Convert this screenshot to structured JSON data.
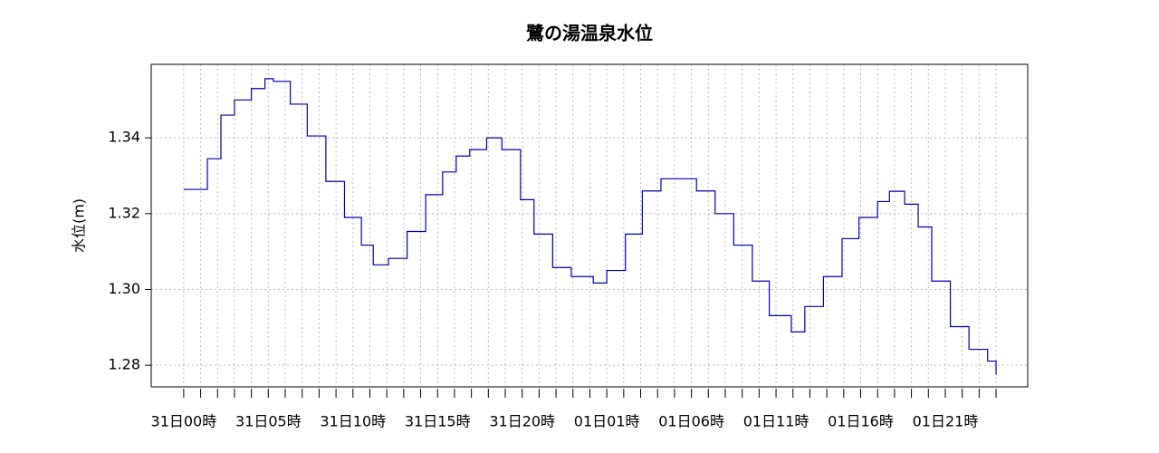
{
  "chart_data": {
    "type": "line",
    "title": "鷺の湯温泉水位",
    "ylabel": "水位(m)",
    "step": true,
    "grid": true,
    "xlim": [
      -1.92,
      49.87
    ],
    "ylim": [
      1.2743,
      1.3594
    ],
    "yticks": [
      1.28,
      {
        "value": 1.3,
        "label": "1.30"
      },
      1.32,
      1.34
    ],
    "xticks": [
      {
        "value": 0,
        "label": "31日00時"
      },
      {
        "value": 1,
        "label": null
      },
      {
        "value": 2,
        "label": null
      },
      {
        "value": 3,
        "label": null
      },
      {
        "value": 4,
        "label": null
      },
      {
        "value": 5,
        "label": "31日05時"
      },
      {
        "value": 6,
        "label": null
      },
      {
        "value": 7,
        "label": null
      },
      {
        "value": 8,
        "label": null
      },
      {
        "value": 9,
        "label": null
      },
      {
        "value": 10,
        "label": "31日10時"
      },
      {
        "value": 11,
        "label": null
      },
      {
        "value": 12,
        "label": null
      },
      {
        "value": 13,
        "label": null
      },
      {
        "value": 14,
        "label": null
      },
      {
        "value": 15,
        "label": "31日15時"
      },
      {
        "value": 16,
        "label": null
      },
      {
        "value": 17,
        "label": null
      },
      {
        "value": 18,
        "label": null
      },
      {
        "value": 19,
        "label": null
      },
      {
        "value": 20,
        "label": "31日20時"
      },
      {
        "value": 21,
        "label": null
      },
      {
        "value": 22,
        "label": null
      },
      {
        "value": 23,
        "label": null
      },
      {
        "value": 24,
        "label": null
      },
      {
        "value": 25,
        "label": "01日01時"
      },
      {
        "value": 26,
        "label": null
      },
      {
        "value": 27,
        "label": null
      },
      {
        "value": 28,
        "label": null
      },
      {
        "value": 29,
        "label": null
      },
      {
        "value": 30,
        "label": "01日06時"
      },
      {
        "value": 31,
        "label": null
      },
      {
        "value": 32,
        "label": null
      },
      {
        "value": 33,
        "label": null
      },
      {
        "value": 34,
        "label": null
      },
      {
        "value": 35,
        "label": "01日11時"
      },
      {
        "value": 36,
        "label": null
      },
      {
        "value": 37,
        "label": null
      },
      {
        "value": 38,
        "label": null
      },
      {
        "value": 39,
        "label": null
      },
      {
        "value": 40,
        "label": "01日16時"
      },
      {
        "value": 41,
        "label": null
      },
      {
        "value": 42,
        "label": null
      },
      {
        "value": 43,
        "label": null
      },
      {
        "value": 44,
        "label": null
      },
      {
        "value": 45,
        "label": "01日21時"
      },
      {
        "value": 46,
        "label": null
      },
      {
        "value": 47,
        "label": null
      },
      {
        "value": 48,
        "label": null
      }
    ],
    "x": [
      0,
      1.4,
      2.2,
      3.0,
      4.0,
      4.8,
      5.3,
      6.3,
      7.3,
      8.4,
      9.5,
      10.5,
      11.2,
      12.1,
      13.2,
      14.3,
      15.3,
      16.1,
      16.9,
      17.9,
      18.8,
      19.9,
      20.7,
      21.8,
      22.9,
      24.2,
      25.0,
      26.1,
      27.1,
      28.2,
      29.3,
      30.3,
      31.4,
      32.5,
      33.6,
      34.6,
      35.9,
      36.7,
      37.8,
      38.9,
      39.9,
      41.0,
      41.7,
      42.6,
      43.4,
      44.2,
      45.3,
      46.4,
      47.5,
      48.0
    ],
    "series": [
      {
        "name": "水位",
        "color": "#0000aa",
        "values": [
          1.3264,
          1.3345,
          1.346,
          1.35,
          1.353,
          1.3556,
          1.3549,
          1.3489,
          1.3405,
          1.3285,
          1.319,
          1.3117,
          1.3065,
          1.3082,
          1.3153,
          1.325,
          1.331,
          1.3352,
          1.3369,
          1.34,
          1.3369,
          1.3237,
          1.3146,
          1.3058,
          1.3034,
          1.3017,
          1.305,
          1.3146,
          1.326,
          1.3292,
          1.3292,
          1.326,
          1.32,
          1.3117,
          1.3022,
          1.2931,
          1.2888,
          1.2955,
          1.3034,
          1.3134,
          1.319,
          1.3232,
          1.3259,
          1.3225,
          1.3165,
          1.3022,
          1.2902,
          1.2842,
          1.2811,
          1.2775
        ]
      }
    ]
  }
}
